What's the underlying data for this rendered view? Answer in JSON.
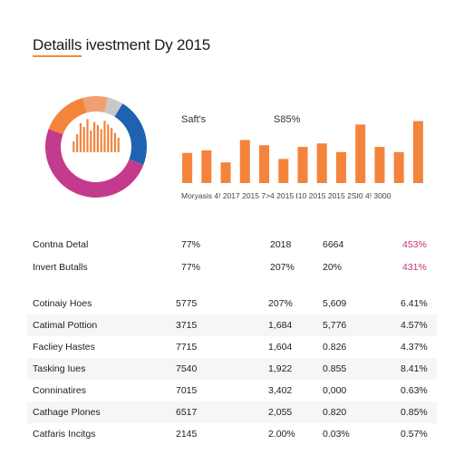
{
  "title": "Detaills ivestment Dy 2015",
  "colors": {
    "accent_orange": "#f4843c",
    "donut_blue": "#1f63b0",
    "donut_magenta": "#c43a8c",
    "donut_grey": "#c8c8c8",
    "magenta_text": "#c0337a"
  },
  "chart_data": [
    {
      "type": "pie",
      "title": "",
      "slices": [
        {
          "color": "#1f63b0",
          "value": 22
        },
        {
          "color": "#c43a8c",
          "value": 50
        },
        {
          "color": "#f4843c",
          "value": 15
        },
        {
          "color": "#f0a070",
          "value": 8
        },
        {
          "color": "#c8c8c8",
          "value": 5
        }
      ],
      "inner_bars": [
        18,
        30,
        48,
        42,
        55,
        36,
        50,
        45,
        38,
        52,
        46,
        40,
        32,
        24
      ]
    },
    {
      "type": "bar",
      "title": "",
      "annotations": [
        "Saft's",
        "S85%"
      ],
      "x_axis_text": "Moryasis 4! 2017 2015 7>4 2015 I10 2015 2015 2SI0 4! 3000",
      "values": [
        35,
        38,
        24,
        50,
        44,
        28,
        42,
        46,
        36,
        68,
        42,
        36,
        72
      ],
      "ylim": [
        0,
        80
      ]
    }
  ],
  "summary": [
    {
      "name": "Contna Detal",
      "c1": "77%",
      "c2": "2018",
      "c3": "6664",
      "c4": "453%"
    },
    {
      "name": "Invert Butalls",
      "c1": "77%",
      "c2": "207%",
      "c3": "20%",
      "c4": "431%"
    }
  ],
  "table": [
    {
      "name": "Cotinaiy Hoes",
      "c1": "5775",
      "c2": "207%",
      "c3": "5,609",
      "c4": "6.41%"
    },
    {
      "name": "Catimal Pottion",
      "c1": "3715",
      "c2": "1,684",
      "c3": "5,776",
      "c4": "4.57%"
    },
    {
      "name": "Facliey Hastes",
      "c1": "7715",
      "c2": "1,604",
      "c3": "0.826",
      "c4": "4.37%"
    },
    {
      "name": "Tasking Iues",
      "c1": "7540",
      "c2": "1,922",
      "c3": "0.855",
      "c4": "8.41%"
    },
    {
      "name": "Conninatires",
      "c1": "7015",
      "c2": "3,402",
      "c3": "0,000",
      "c4": "0.63%"
    },
    {
      "name": "Cathage Plones",
      "c1": "6517",
      "c2": "2,055",
      "c3": "0.820",
      "c4": "0.85%"
    },
    {
      "name": "Catfaris Incitgs",
      "c1": "2145",
      "c2": "2.00%",
      "c3": "0.03%",
      "c4": "0.57%"
    }
  ]
}
